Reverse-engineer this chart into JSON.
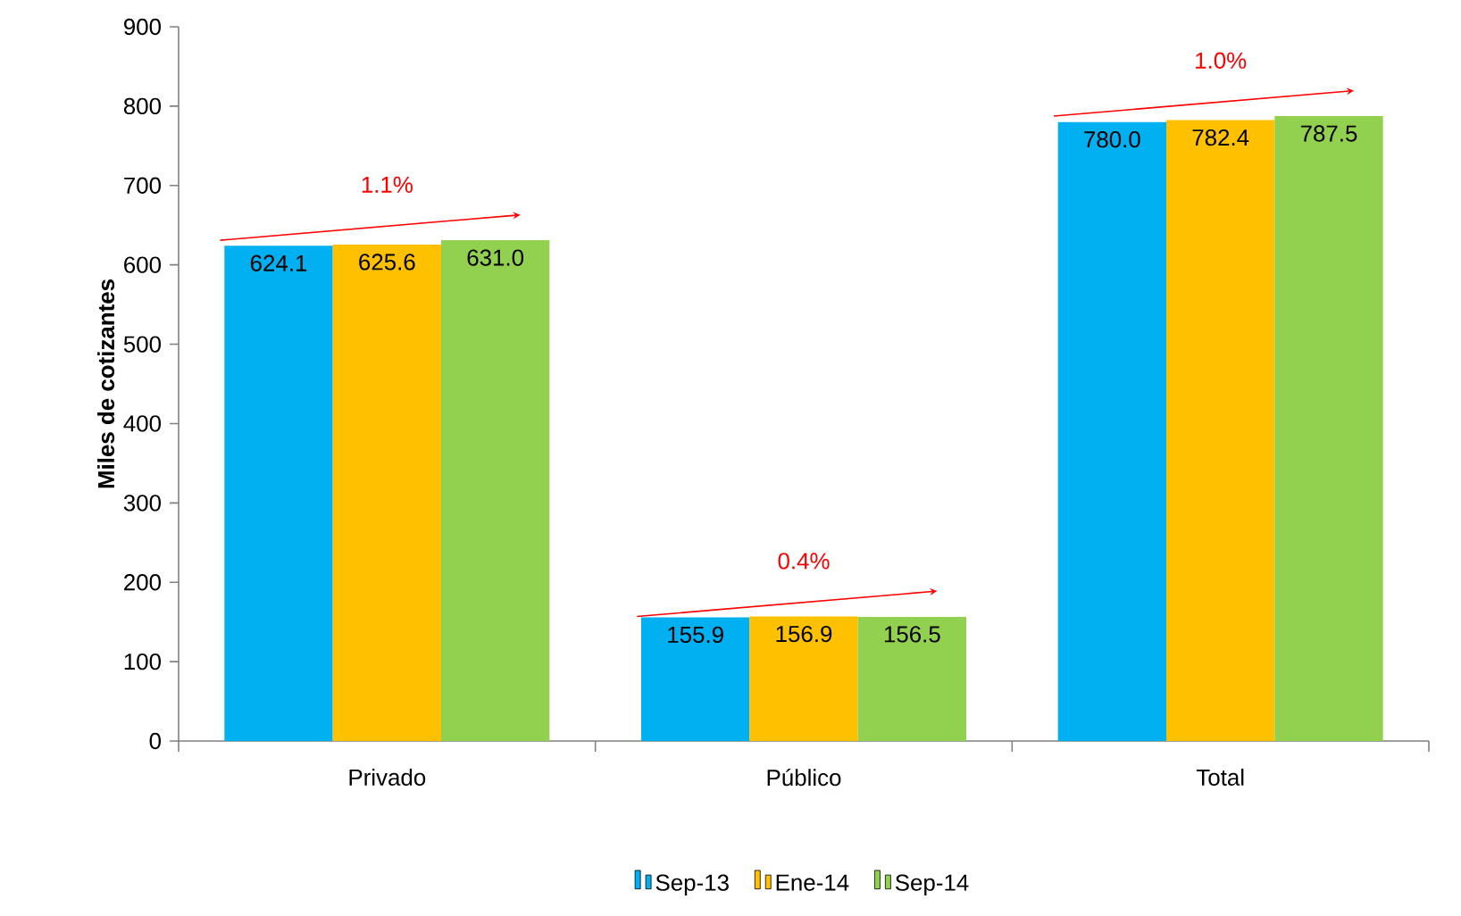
{
  "chart_data": {
    "type": "bar",
    "ylabel": "Miles de cotizantes",
    "categories": [
      "Privado",
      "Público",
      "Total"
    ],
    "series": [
      {
        "name": "Sep-13",
        "color": "#00b0f0",
        "values": [
          624.1,
          155.9,
          780.0
        ],
        "value_labels": [
          "624.1",
          "155.9",
          "780.0"
        ]
      },
      {
        "name": "Ene-14",
        "color": "#ffc000",
        "values": [
          625.6,
          156.9,
          782.4
        ],
        "value_labels": [
          "625.6",
          "156.9",
          "782.4"
        ]
      },
      {
        "name": "Sep-14",
        "color": "#92d050",
        "values": [
          631.0,
          156.5,
          787.5
        ],
        "value_labels": [
          "631.0",
          "156.5",
          "787.5"
        ]
      }
    ],
    "ylim": [
      0,
      900
    ],
    "yticks": [
      0,
      100,
      200,
      300,
      400,
      500,
      600,
      700,
      800,
      900
    ],
    "grid": false,
    "legend": "bottom",
    "annotations": [
      "1.1%",
      "0.4%",
      "1.0%"
    ]
  }
}
